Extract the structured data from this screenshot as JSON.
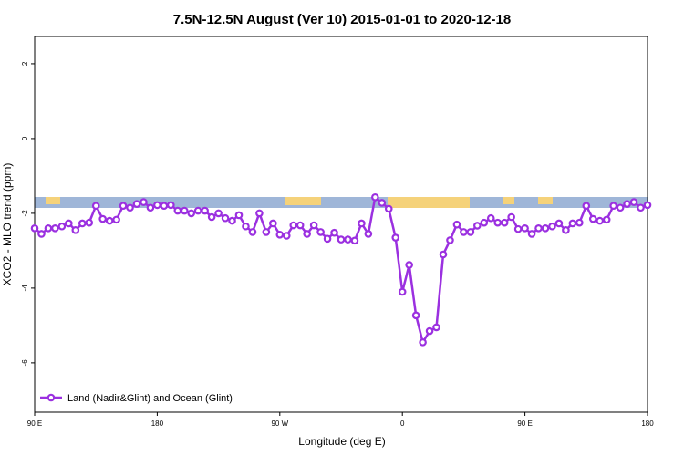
{
  "chart_data": {
    "type": "line",
    "title": "7.5N-12.5N August (Ver 10)   2015-01-01 to 2020-12-18",
    "x_label": "Longitude (deg E)",
    "y_label": "XCO2 - MLO trend (ppm)",
    "xlim": [
      90,
      540
    ],
    "xticks": [
      {
        "value": 90,
        "label": "90 E"
      },
      180,
      {
        "value": 270,
        "label": "90 W"
      },
      {
        "value": 360,
        "label": "0"
      },
      {
        "value": 450,
        "label": "90 E"
      },
      {
        "value": 540,
        "label": "180"
      }
    ],
    "ylim": [
      -7.32,
      2.73
    ],
    "yticks": [
      -6,
      -4,
      -2,
      0,
      2
    ],
    "legend": "bottom-left",
    "x": [
      90,
      95,
      100,
      105,
      110,
      115,
      120,
      125,
      130,
      135,
      140,
      145,
      150,
      155,
      160,
      165,
      170,
      175,
      180,
      185,
      190,
      195,
      200,
      205,
      210,
      215,
      220,
      225,
      230,
      235,
      240,
      245,
      250,
      255,
      260,
      265,
      270,
      275,
      280,
      285,
      290,
      295,
      300,
      305,
      310,
      315,
      320,
      325,
      330,
      335,
      340,
      345,
      350,
      355,
      360,
      365,
      370,
      375,
      380,
      385,
      390,
      395,
      400,
      405,
      410,
      415,
      420,
      425,
      430,
      435,
      440,
      445,
      450,
      455,
      460,
      465,
      470,
      475,
      480,
      485,
      490,
      495,
      500,
      505,
      510,
      515,
      520,
      525,
      530,
      535,
      540
    ],
    "series": [
      {
        "name": "Land (Nadir&Glint) and Ocean (Glint)",
        "color": "#9b30e0",
        "values": [
          -2.4,
          -2.55,
          -2.4,
          -2.4,
          -2.35,
          -2.27,
          -2.45,
          -2.27,
          -2.25,
          -1.8,
          -2.15,
          -2.2,
          -2.17,
          -1.8,
          -1.85,
          -1.75,
          -1.7,
          -1.85,
          -1.78,
          -1.8,
          -1.78,
          -1.93,
          -1.93,
          -2.0,
          -1.93,
          -1.93,
          -2.1,
          -2.0,
          -2.13,
          -2.2,
          -2.05,
          -2.35,
          -2.5,
          -2.0,
          -2.5,
          -2.27,
          -2.57,
          -2.6,
          -2.32,
          -2.32,
          -2.55,
          -2.32,
          -2.5,
          -2.68,
          -2.52,
          -2.7,
          -2.7,
          -2.73,
          -2.27,
          -2.55,
          -1.57,
          -1.72,
          -1.88,
          -2.65,
          -4.1,
          -3.38,
          -4.73,
          -5.45,
          -5.15,
          -5.05,
          -3.1,
          -2.72,
          -2.3,
          -2.5,
          -2.5,
          -2.33,
          -2.25,
          -2.13,
          -2.25,
          -2.25,
          -2.1,
          -2.42,
          -2.4,
          -2.55,
          -2.4,
          -2.4,
          -2.35,
          -2.27,
          -2.45,
          -2.27,
          -2.25,
          -1.8,
          -2.15,
          -2.2,
          -2.17,
          -1.8,
          -1.85,
          -1.75,
          -1.7,
          -1.85,
          -1.78
        ]
      }
    ]
  }
}
